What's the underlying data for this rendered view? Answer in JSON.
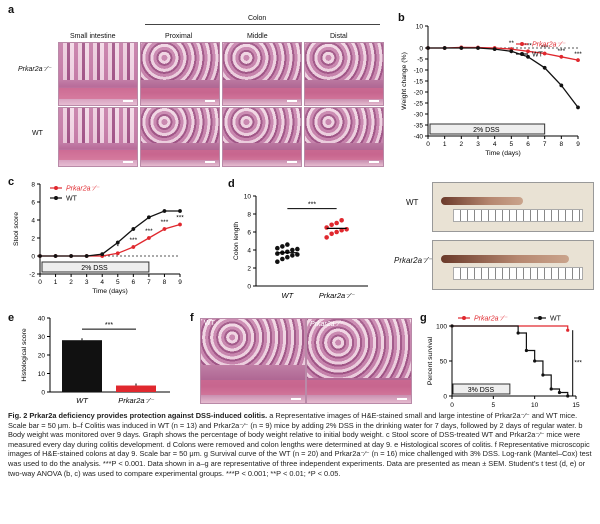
{
  "panels": {
    "a": "a",
    "b": "b",
    "c": "c",
    "d": "d",
    "e": "e",
    "f": "f",
    "g": "g"
  },
  "panel_a": {
    "col_small": "Small intestine",
    "col_colon": "Colon",
    "col_prox": "Proximal",
    "col_mid": "Middle",
    "col_dist": "Distal",
    "row_ko": "Prkar2a⁻⁄⁻",
    "row_wt": "WT"
  },
  "panel_d_photo": {
    "wt": "WT",
    "ko": "Prkar2a⁻⁄⁻"
  },
  "panel_f": {
    "wt": "WT",
    "ko": "Prkar2a⁻⁄⁻"
  },
  "caption": {
    "title": "Fig. 2   Prkar2a deficiency provides protection against DSS-induced colitis.",
    "body": " a Representative images of H&E-stained small and large intestine of Prkar2a⁻⁄⁻ and WT mice. Scale bar = 50 μm. b–f Colitis was induced in WT (n = 13) and Prkar2a⁻⁄⁻ (n = 9) mice by adding 2% DSS in the drinking water for 7 days, followed by 2 days of regular water. b Body weight was monitored over 9 days. Graph shows the percentage of body weight relative to initial body weight. c Stool score of DSS-treated WT and Prkar2a⁻⁄⁻ mice were measured every day during colitis development. d Colons were removed and colon lengths were determined at day 9. e Histological scores of colitis. f Representative microscopic images of H&E-stained colons at day 9. Scale bar = 50 μm. g Survival curve of the WT (n = 20) and Prkar2a⁻⁄⁻ (n = 16) mice challenged with 3% DSS. Log-rank (Mantel–Cox) test was used to do the analysis. ***P < 0.001. Data shown in a–g are representative of three independent experiments. Data are presented as mean ± SEM. Student’s t test (d, e) or two-way ANOVA (b, c) was used to compare experimental groups. ***P < 0.001; **P < 0.01; *P < 0.05."
  },
  "colors": {
    "wt": "#111111",
    "ko": "#e0282e"
  },
  "chart_data": [
    {
      "id": "b",
      "type": "line",
      "xlabel": "Time (days)",
      "ylabel": "Weight change (%)",
      "x": [
        0,
        1,
        2,
        3,
        4,
        5,
        6,
        7,
        8,
        9
      ],
      "ylim": [
        -40,
        10
      ],
      "yticks": [
        10,
        0,
        -5,
        -10,
        -15,
        -20,
        -25,
        -30,
        -35,
        -40
      ],
      "series": [
        {
          "name": "Prkar2a⁻⁄⁻",
          "color": "#e0282e",
          "values": [
            0,
            0,
            0.3,
            0.2,
            0,
            -0.5,
            -1.5,
            -2.5,
            -4,
            -5.5
          ]
        },
        {
          "name": "WT",
          "color": "#111111",
          "values": [
            0,
            0,
            0,
            0,
            -0.5,
            -1.5,
            -4,
            -9,
            -17,
            -27
          ]
        }
      ],
      "annotations": [
        "**",
        "***",
        "***",
        "***",
        "***"
      ],
      "box_label": "2% DSS"
    },
    {
      "id": "c",
      "type": "line",
      "xlabel": "Time (days)",
      "ylabel": "Stool score",
      "x": [
        0,
        1,
        2,
        3,
        4,
        5,
        6,
        7,
        8,
        9
      ],
      "ylim": [
        -2,
        8
      ],
      "yticks": [
        -2,
        0,
        2,
        4,
        6,
        8
      ],
      "series": [
        {
          "name": "Prkar2a⁻⁄⁻",
          "color": "#e0282e",
          "values": [
            0,
            0,
            0,
            0,
            0,
            0.3,
            1,
            2,
            3,
            3.5
          ]
        },
        {
          "name": "WT",
          "color": "#111111",
          "values": [
            0,
            0,
            0,
            0,
            0.2,
            1.5,
            3,
            4.3,
            5,
            5
          ]
        }
      ],
      "annotations": [
        "*",
        "***",
        "***",
        "***",
        "***"
      ],
      "box_label": "2% DSS"
    },
    {
      "id": "d",
      "type": "scatter",
      "ylabel": "Colon length",
      "categories": [
        "WT",
        "Prkar2a⁻⁄⁻"
      ],
      "ylim": [
        0,
        10
      ],
      "yticks": [
        0,
        2,
        4,
        6,
        8,
        10
      ],
      "series": [
        {
          "name": "WT",
          "color": "#111111",
          "values": [
            2.7,
            3,
            3.2,
            3.4,
            3.5,
            3.6,
            3.7,
            3.8,
            4,
            4.1,
            4.2,
            4.4,
            4.6
          ],
          "mean": 3.7
        },
        {
          "name": "Prkar2a⁻⁄⁻",
          "color": "#e0282e",
          "values": [
            5.4,
            5.8,
            6,
            6.2,
            6.3,
            6.5,
            6.8,
            7,
            7.3
          ],
          "mean": 6.4
        }
      ],
      "annotation": "***"
    },
    {
      "id": "e",
      "type": "bar",
      "ylabel": "Histological score",
      "categories": [
        "WT",
        "Prkar2a⁻⁄⁻"
      ],
      "values": [
        28,
        3.5
      ],
      "colors": [
        "#111111",
        "#e0282e"
      ],
      "ylim": [
        0,
        40
      ],
      "yticks": [
        0,
        10,
        20,
        30,
        40
      ],
      "annotation": "***"
    },
    {
      "id": "g",
      "type": "line",
      "ylabel": "Percent survival",
      "x_label_box": "3% DSS",
      "xticks": [
        0,
        5,
        10,
        15
      ],
      "xlim": [
        0,
        15
      ],
      "ylim": [
        0,
        100
      ],
      "yticks": [
        0,
        50,
        100
      ],
      "series": [
        {
          "name": "Prkar2a⁻⁄⁻",
          "color": "#e0282e",
          "steps": [
            [
              0,
              100
            ],
            [
              14,
              100
            ],
            [
              14,
              94
            ]
          ]
        },
        {
          "name": "WT",
          "color": "#111111",
          "steps": [
            [
              0,
              100
            ],
            [
              8,
              100
            ],
            [
              8,
              90
            ],
            [
              9,
              90
            ],
            [
              9,
              65
            ],
            [
              10,
              65
            ],
            [
              10,
              50
            ],
            [
              11,
              50
            ],
            [
              11,
              30
            ],
            [
              12,
              30
            ],
            [
              12,
              10
            ],
            [
              13,
              10
            ],
            [
              13,
              5
            ],
            [
              14,
              5
            ],
            [
              14,
              0
            ]
          ]
        }
      ],
      "annotation": "***"
    }
  ]
}
